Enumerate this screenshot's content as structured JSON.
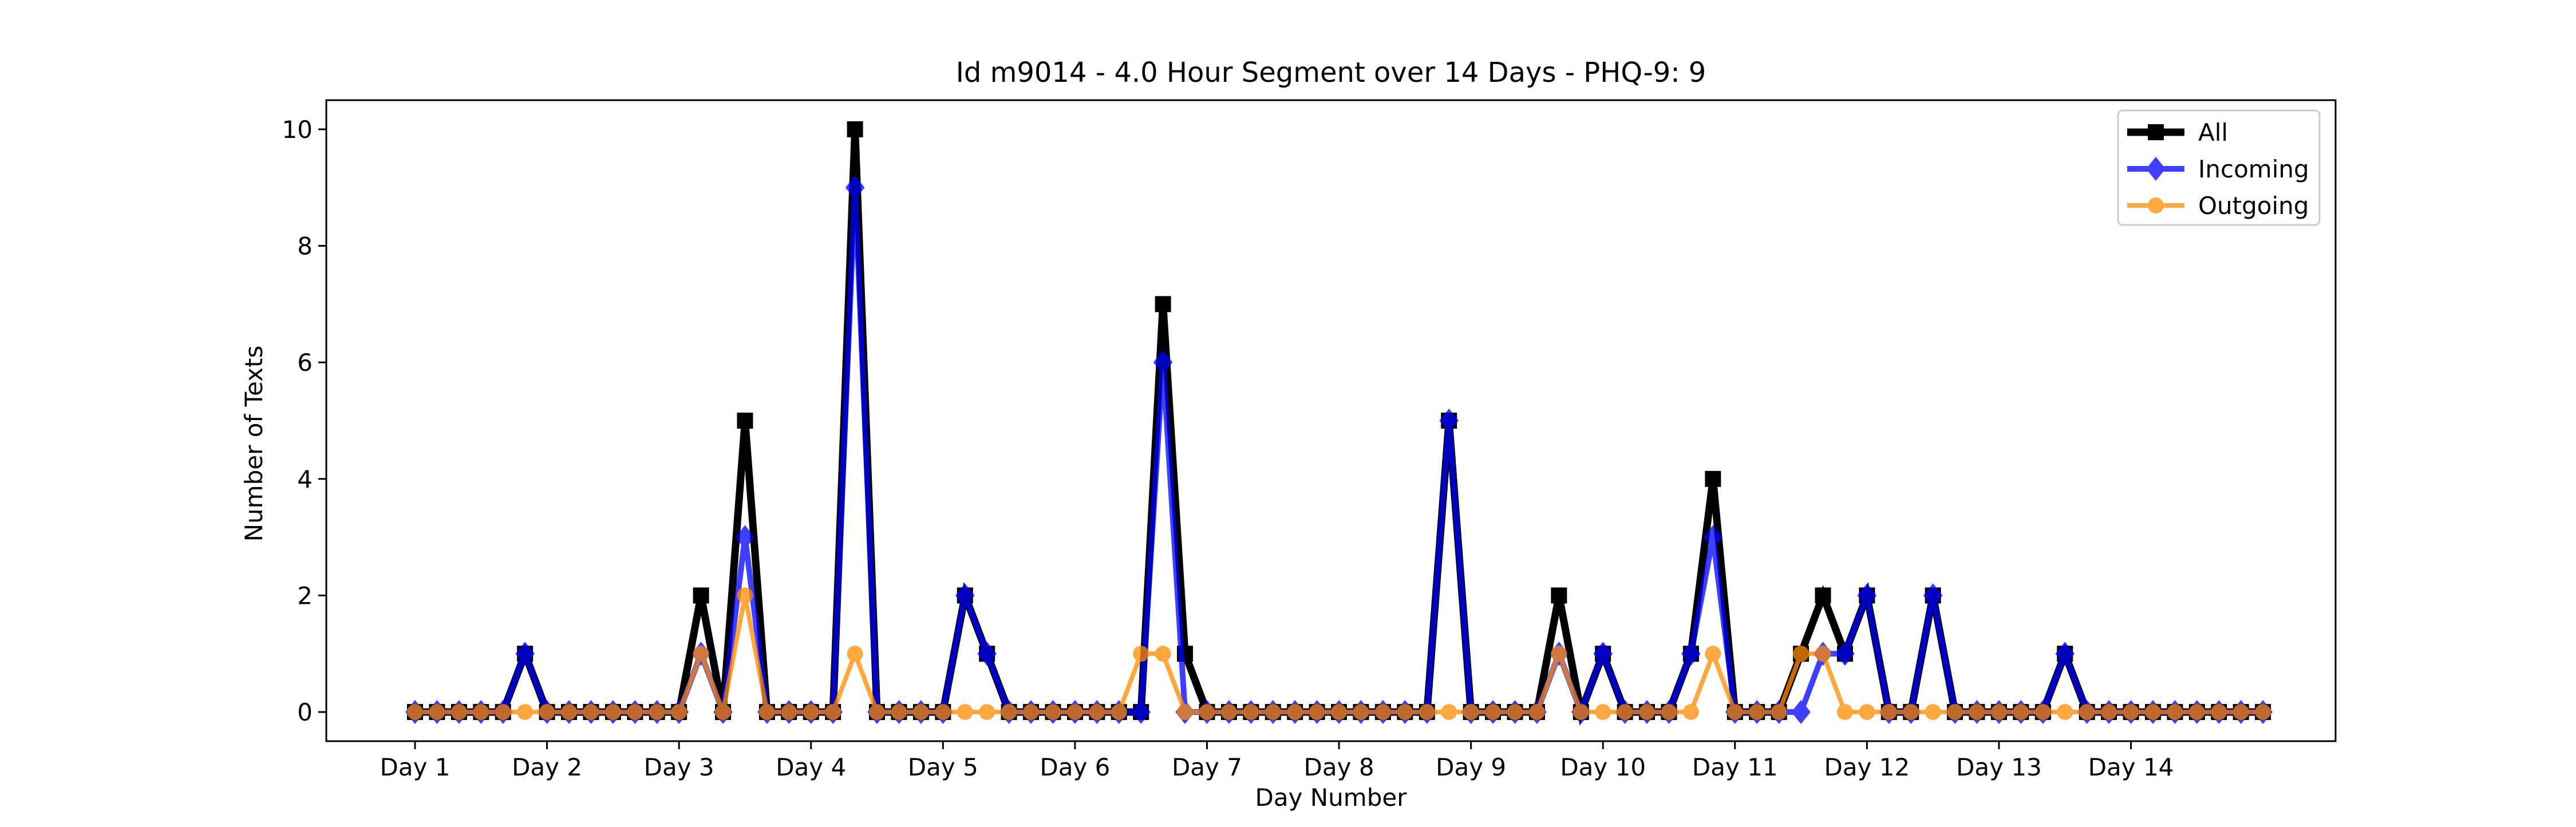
{
  "chart_data": {
    "type": "line",
    "title": "Id m9014 - 4.0 Hour Segment over 14 Days - PHQ-9: 9",
    "xlabel": "Day Number",
    "ylabel": "Number of Texts",
    "x_tick_labels": [
      "Day 1",
      "Day 2",
      "Day 3",
      "Day 4",
      "Day 5",
      "Day 6",
      "Day 7",
      "Day 8",
      "Day 9",
      "Day 10",
      "Day 11",
      "Day 12",
      "Day 13",
      "Day 14"
    ],
    "points_per_day": 6,
    "y_ticks": [
      0,
      2,
      4,
      6,
      8,
      10
    ],
    "ylim": [
      -0.5,
      10.5
    ],
    "grid": false,
    "legend_position": "top-right",
    "series": [
      {
        "name": "All",
        "color": "#000000",
        "marker": "square",
        "values": [
          0,
          0,
          0,
          0,
          0,
          1,
          0,
          0,
          0,
          0,
          0,
          0,
          0,
          2,
          0,
          5,
          0,
          0,
          0,
          0,
          10,
          0,
          0,
          0,
          0,
          2,
          1,
          0,
          0,
          0,
          0,
          0,
          0,
          0,
          7,
          1,
          0,
          0,
          0,
          0,
          0,
          0,
          0,
          0,
          0,
          0,
          0,
          5,
          0,
          0,
          0,
          0,
          2,
          0,
          1,
          0,
          0,
          0,
          1,
          4,
          0,
          0,
          0,
          1,
          2,
          1,
          2,
          0,
          0,
          2,
          0,
          0,
          0,
          0,
          0,
          1,
          0,
          0,
          0,
          0,
          0,
          0,
          0,
          0,
          0
        ]
      },
      {
        "name": "Incoming",
        "color": "#0000ff",
        "marker": "diamond",
        "values": [
          0,
          0,
          0,
          0,
          0,
          1,
          0,
          0,
          0,
          0,
          0,
          0,
          0,
          1,
          0,
          3,
          0,
          0,
          0,
          0,
          9,
          0,
          0,
          0,
          0,
          2,
          1,
          0,
          0,
          0,
          0,
          0,
          0,
          0,
          6,
          0,
          0,
          0,
          0,
          0,
          0,
          0,
          0,
          0,
          0,
          0,
          0,
          5,
          0,
          0,
          0,
          0,
          1,
          0,
          1,
          0,
          0,
          0,
          1,
          3,
          0,
          0,
          0,
          0,
          1,
          1,
          2,
          0,
          0,
          2,
          0,
          0,
          0,
          0,
          0,
          1,
          0,
          0,
          0,
          0,
          0,
          0,
          0,
          0,
          0
        ]
      },
      {
        "name": "Outgoing",
        "color": "#ff8c00",
        "marker": "circle",
        "values": [
          0,
          0,
          0,
          0,
          0,
          0,
          0,
          0,
          0,
          0,
          0,
          0,
          0,
          1,
          0,
          2,
          0,
          0,
          0,
          0,
          1,
          0,
          0,
          0,
          0,
          0,
          0,
          0,
          0,
          0,
          0,
          0,
          0,
          1,
          1,
          0,
          0,
          0,
          0,
          0,
          0,
          0,
          0,
          0,
          0,
          0,
          0,
          0,
          0,
          0,
          0,
          0,
          1,
          0,
          0,
          0,
          0,
          0,
          0,
          1,
          0,
          0,
          0,
          1,
          1,
          0,
          0,
          0,
          0,
          0,
          0,
          0,
          0,
          0,
          0,
          0,
          0,
          0,
          0,
          0,
          0,
          0,
          0,
          0,
          0
        ]
      }
    ]
  }
}
